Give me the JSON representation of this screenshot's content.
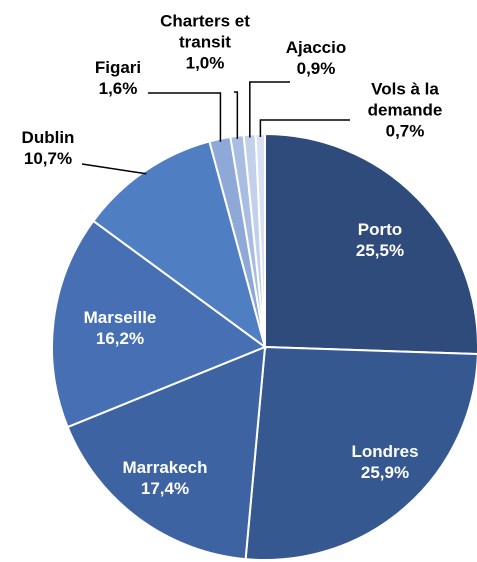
{
  "chart_data": {
    "type": "pie",
    "categories": [
      "Porto",
      "Londres",
      "Marrakech",
      "Marseille",
      "Dublin",
      "Figari",
      "Charters et transit",
      "Ajaccio",
      "Vols à la demande"
    ],
    "values": [
      25.5,
      25.9,
      17.4,
      16.2,
      10.7,
      1.6,
      1.0,
      0.9,
      0.7
    ],
    "value_labels": [
      "25,5%",
      "25,9%",
      "17,4%",
      "16,2%",
      "10,7%",
      "1,6%",
      "1,0%",
      "0,9%",
      "0,7%"
    ],
    "colors": [
      "#2f4b7c",
      "#365891",
      "#3d63a2",
      "#4670b3",
      "#4f7fc2",
      "#8ea8d8",
      "#a9bde3",
      "#c2d0ec",
      "#d7e1f3"
    ]
  }
}
